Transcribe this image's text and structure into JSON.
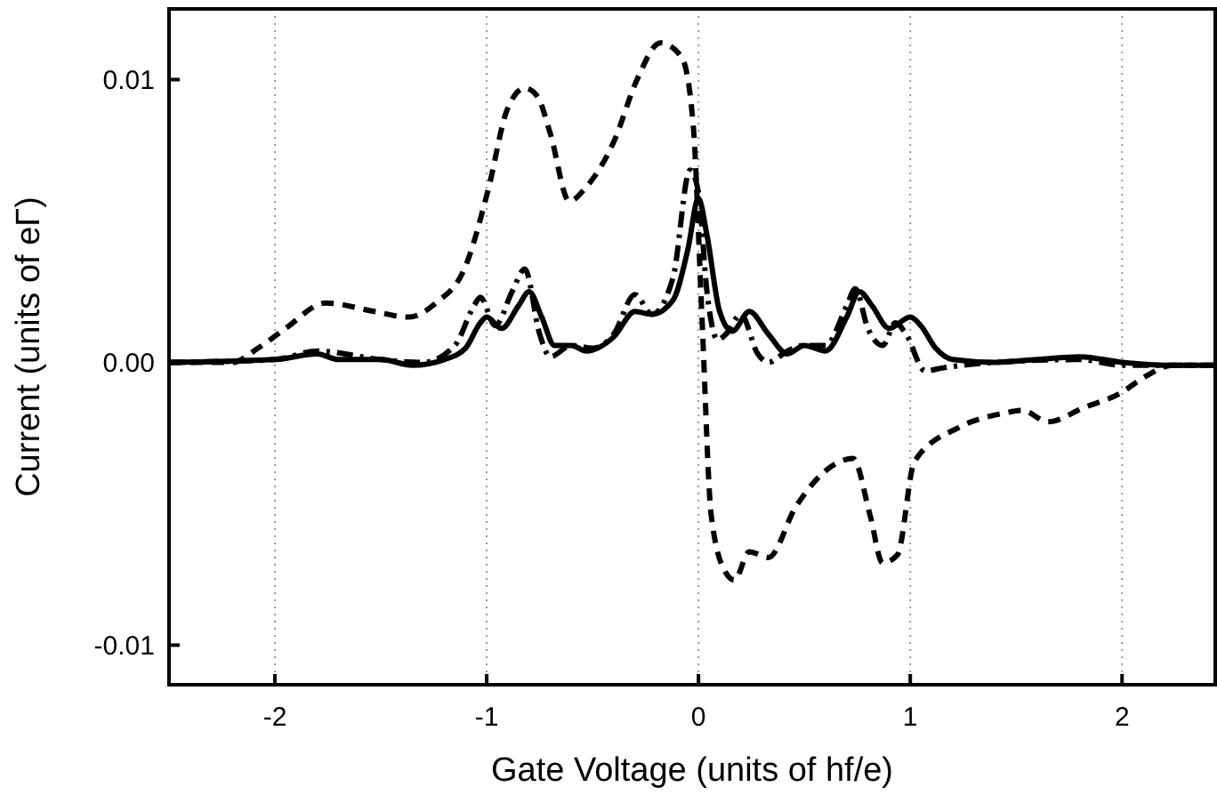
{
  "chart_data": {
    "type": "line",
    "xlabel": "Gate Voltage (units of hf/e)",
    "ylabel": "Current (units of eΓ)",
    "xlim": [
      -2.5,
      2.44
    ],
    "ylim": [
      -0.0114,
      0.0125
    ],
    "xticks": [
      -2,
      -1,
      0,
      1,
      2
    ],
    "yticks": [
      {
        "value": -0.01,
        "label": "-0.01"
      },
      {
        "value": 0,
        "label": "0.00"
      },
      {
        "value": 0.01,
        "label": "0.01"
      }
    ],
    "grid": "x",
    "series": [
      {
        "color": "#000000",
        "line_style": "dashed",
        "x": [
          -2.5,
          -2.2,
          -2.08,
          -1.95,
          -1.76,
          -1.53,
          -1.37,
          -1.24,
          -1.1,
          -0.99,
          -0.905,
          -0.82,
          -0.76,
          -0.7,
          -0.61,
          -0.53,
          -0.4,
          -0.29,
          -0.18,
          -0.08,
          -0.025,
          0.017,
          0.06,
          0.126,
          0.17,
          0.24,
          0.33,
          0.46,
          0.645,
          0.73,
          0.81,
          0.87,
          0.94,
          1.02,
          1.23,
          1.44,
          1.53,
          1.65,
          1.82,
          1.99,
          2.11,
          2.24,
          2.44
        ],
        "values": [
          0,
          0,
          0.0005,
          0.0012,
          0.0021,
          0.0018,
          0.0016,
          0.0021,
          0.0034,
          0.0062,
          0.0089,
          0.0097,
          0.0094,
          0.0081,
          0.0057,
          0.0062,
          0.0078,
          0.01,
          0.0113,
          0.0108,
          0.0084,
          0.0015,
          -0.0054,
          -0.0074,
          -0.0077,
          -0.0067,
          -0.0069,
          -0.0051,
          -0.0036,
          -0.0034,
          -0.0054,
          -0.0071,
          -0.0068,
          -0.0035,
          -0.0023,
          -0.0018,
          -0.0017,
          -0.0021,
          -0.0016,
          -0.0011,
          -0.0005,
          -0.0001,
          -0.0001
        ]
      },
      {
        "color": "#000000",
        "line_style": "dashdot",
        "x": [
          -2.5,
          -2.0,
          -1.8,
          -1.5,
          -1.3,
          -1.15,
          -1.06,
          -1.03,
          -0.96,
          -0.88,
          -0.82,
          -0.75,
          -0.7,
          -0.6,
          -0.5,
          -0.4,
          -0.3,
          -0.22,
          -0.12,
          -0.04,
          0.0,
          0.04,
          0.09,
          0.13,
          0.2,
          0.28,
          0.33,
          0.42,
          0.5,
          0.6,
          0.7,
          0.74,
          0.8,
          0.87,
          0.93,
          0.98,
          1.07,
          1.15,
          1.4,
          1.8,
          2.0,
          2.44
        ],
        "values": [
          0,
          0.0001,
          0.0004,
          0.0001,
          0,
          0.0006,
          0.002,
          0.0023,
          0.0013,
          0.0025,
          0.0033,
          0.001,
          0.0002,
          0.0006,
          0.0005,
          0.001,
          0.0024,
          0.0017,
          0.003,
          0.0068,
          0.006,
          0.0025,
          0.0008,
          0.001,
          0.0017,
          0.0003,
          0,
          0.0004,
          0.0006,
          0.0006,
          0.002,
          0.0026,
          0.0012,
          0.0006,
          0.0014,
          0.001,
          -0.0003,
          -0.0002,
          0,
          0.0001,
          -0.0001,
          -0.0001
        ]
      },
      {
        "color": "#000000",
        "line_style": "solid",
        "x": [
          -2.5,
          -2.0,
          -1.8,
          -1.7,
          -1.5,
          -1.35,
          -1.2,
          -1.1,
          -1.03,
          -1.0,
          -0.93,
          -0.85,
          -0.8,
          -0.74,
          -0.68,
          -0.6,
          -0.53,
          -0.4,
          -0.3,
          -0.22,
          -0.12,
          -0.05,
          0.0,
          0.04,
          0.1,
          0.16,
          0.24,
          0.33,
          0.42,
          0.5,
          0.6,
          0.7,
          0.76,
          0.82,
          0.9,
          1.0,
          1.05,
          1.12,
          1.2,
          1.4,
          1.6,
          1.8,
          2.0,
          2.2,
          2.44
        ],
        "values": [
          0,
          0.0001,
          0.0003,
          0.0001,
          0.0001,
          -0.0001,
          0.0001,
          0.0005,
          0.0014,
          0.0016,
          0.0012,
          0.002,
          0.0025,
          0.0016,
          0.0006,
          0.0006,
          0.0004,
          0.0009,
          0.0018,
          0.0017,
          0.0022,
          0.004,
          0.0058,
          0.0045,
          0.0018,
          0.0011,
          0.0018,
          0.001,
          0.0003,
          0.0006,
          0.0004,
          0.0016,
          0.0025,
          0.002,
          0.0012,
          0.0016,
          0.0013,
          0.0005,
          0.0001,
          0,
          0.0001,
          0.0002,
          0,
          -0.0001,
          -0.0001
        ]
      }
    ]
  }
}
